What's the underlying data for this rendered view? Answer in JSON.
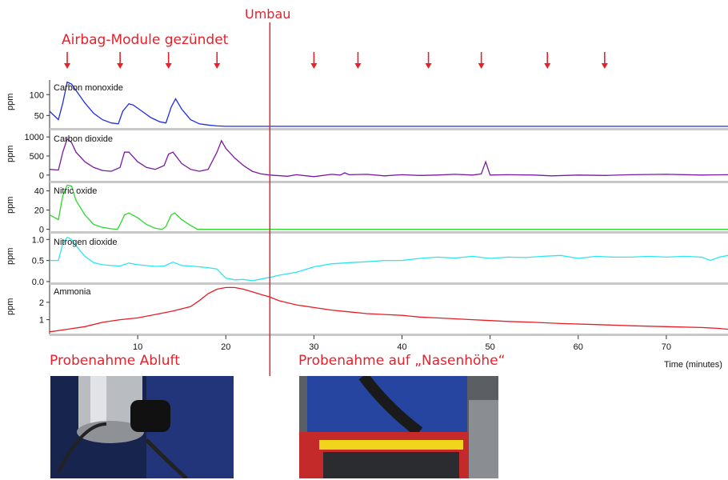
{
  "annotations": {
    "umbau": "Umbau",
    "airbag": "Airbag-Module gezündet",
    "abluft": "Probenahme Abluft",
    "nasenhoehe": "Probenahme auf „Nasenhöhe“",
    "umbau_time": 25
  },
  "colors": {
    "annotation": "#e8202a",
    "co": "#1f2ee0",
    "co2": "#7a1aa0",
    "no": "#2bd92b",
    "no2": "#2be6ee",
    "nh3": "#e81c24"
  },
  "chart_data": {
    "type": "line",
    "xlabel": "Time (minutes)",
    "ylabel": "ppm",
    "xlim": [
      0,
      77
    ],
    "x_ticks": [
      10,
      20,
      30,
      40,
      50,
      60,
      70
    ],
    "arrow_times": [
      2,
      8,
      13.5,
      19,
      30,
      35,
      43,
      49,
      56.5,
      63
    ],
    "panels": [
      {
        "name": "Carbon monoxide",
        "ylim": [
          20,
          135
        ],
        "yticks": [
          50,
          100
        ],
        "color_key": "co",
        "points": [
          [
            0,
            60
          ],
          [
            1,
            40
          ],
          [
            1.5,
            80
          ],
          [
            2,
            130
          ],
          [
            2.5,
            125
          ],
          [
            3,
            110
          ],
          [
            4,
            80
          ],
          [
            5,
            55
          ],
          [
            6,
            40
          ],
          [
            7,
            32
          ],
          [
            7.8,
            30
          ],
          [
            8.3,
            60
          ],
          [
            9,
            78
          ],
          [
            9.5,
            75
          ],
          [
            10.5,
            60
          ],
          [
            11.5,
            45
          ],
          [
            12.5,
            35
          ],
          [
            13.2,
            32
          ],
          [
            13.8,
            70
          ],
          [
            14.3,
            90
          ],
          [
            15,
            65
          ],
          [
            16,
            40
          ],
          [
            17,
            30
          ],
          [
            18,
            27
          ],
          [
            19,
            25
          ],
          [
            20,
            24
          ],
          [
            77,
            24
          ]
        ]
      },
      {
        "name": "Carbon dioxide",
        "ylim": [
          -150,
          1150
        ],
        "yticks": [
          0,
          500,
          1000
        ],
        "color_key": "co2",
        "points": [
          [
            0,
            150
          ],
          [
            1,
            130
          ],
          [
            1.5,
            600
          ],
          [
            2,
            950
          ],
          [
            2.5,
            850
          ],
          [
            3,
            600
          ],
          [
            4,
            350
          ],
          [
            5,
            200
          ],
          [
            6,
            120
          ],
          [
            7,
            100
          ],
          [
            8,
            200
          ],
          [
            8.5,
            600
          ],
          [
            9,
            600
          ],
          [
            10,
            350
          ],
          [
            11,
            200
          ],
          [
            12,
            150
          ],
          [
            13,
            250
          ],
          [
            13.5,
            550
          ],
          [
            14,
            600
          ],
          [
            15,
            300
          ],
          [
            16,
            150
          ],
          [
            17,
            100
          ],
          [
            18,
            150
          ],
          [
            19,
            600
          ],
          [
            19.5,
            900
          ],
          [
            20,
            700
          ],
          [
            21,
            450
          ],
          [
            22,
            250
          ],
          [
            23,
            100
          ],
          [
            24,
            30
          ],
          [
            25,
            0
          ],
          [
            27,
            -30
          ],
          [
            28,
            10
          ],
          [
            30,
            -40
          ],
          [
            32,
            20
          ],
          [
            33,
            0
          ],
          [
            33.5,
            60
          ],
          [
            34,
            10
          ],
          [
            36,
            20
          ],
          [
            38,
            -20
          ],
          [
            40,
            10
          ],
          [
            42,
            -10
          ],
          [
            44,
            0
          ],
          [
            46,
            20
          ],
          [
            48,
            0
          ],
          [
            49,
            30
          ],
          [
            49.5,
            350
          ],
          [
            50,
            0
          ],
          [
            52,
            10
          ],
          [
            55,
            0
          ],
          [
            57,
            -20
          ],
          [
            60,
            0
          ],
          [
            63,
            -10
          ],
          [
            66,
            10
          ],
          [
            70,
            20
          ],
          [
            74,
            0
          ],
          [
            77,
            10
          ]
        ]
      },
      {
        "name": "Nitric oxide",
        "ylim": [
          -2,
          48
        ],
        "yticks": [
          0,
          20,
          40
        ],
        "color_key": "no",
        "points": [
          [
            0,
            15
          ],
          [
            1,
            10
          ],
          [
            1.5,
            35
          ],
          [
            2,
            46
          ],
          [
            2.5,
            45
          ],
          [
            3,
            30
          ],
          [
            4,
            15
          ],
          [
            5,
            5
          ],
          [
            6,
            2
          ],
          [
            7,
            0.5
          ],
          [
            7.7,
            0
          ],
          [
            8,
            5
          ],
          [
            8.5,
            15
          ],
          [
            9,
            17
          ],
          [
            10,
            12
          ],
          [
            11,
            5
          ],
          [
            12,
            1
          ],
          [
            12.8,
            0
          ],
          [
            13.2,
            3
          ],
          [
            13.8,
            15
          ],
          [
            14.2,
            17
          ],
          [
            15,
            10
          ],
          [
            16,
            4
          ],
          [
            16.8,
            0
          ],
          [
            77,
            0
          ]
        ]
      },
      {
        "name": "Nitrogen dioxide",
        "ylim": [
          -0.02,
          1.12
        ],
        "yticks": [
          0.0,
          0.5,
          1.0
        ],
        "color_key": "no2",
        "points": [
          [
            0,
            0.5
          ],
          [
            1,
            0.5
          ],
          [
            1.5,
            0.9
          ],
          [
            2,
            1.05
          ],
          [
            2.5,
            1.0
          ],
          [
            3,
            0.85
          ],
          [
            4,
            0.6
          ],
          [
            5,
            0.45
          ],
          [
            6,
            0.4
          ],
          [
            7,
            0.38
          ],
          [
            8,
            0.37
          ],
          [
            9,
            0.44
          ],
          [
            10,
            0.4
          ],
          [
            11,
            0.38
          ],
          [
            12,
            0.36
          ],
          [
            13,
            0.37
          ],
          [
            14,
            0.46
          ],
          [
            15,
            0.38
          ],
          [
            16,
            0.37
          ],
          [
            17,
            0.35
          ],
          [
            18,
            0.33
          ],
          [
            19,
            0.3
          ],
          [
            20,
            0.08
          ],
          [
            21,
            0.04
          ],
          [
            22,
            0.05
          ],
          [
            23,
            0.02
          ],
          [
            24,
            0.06
          ],
          [
            25,
            0.1
          ],
          [
            26,
            0.15
          ],
          [
            28,
            0.22
          ],
          [
            30,
            0.35
          ],
          [
            32,
            0.42
          ],
          [
            34,
            0.45
          ],
          [
            36,
            0.47
          ],
          [
            38,
            0.5
          ],
          [
            40,
            0.5
          ],
          [
            42,
            0.55
          ],
          [
            44,
            0.58
          ],
          [
            46,
            0.56
          ],
          [
            48,
            0.6
          ],
          [
            50,
            0.55
          ],
          [
            52,
            0.58
          ],
          [
            54,
            0.57
          ],
          [
            56,
            0.6
          ],
          [
            58,
            0.62
          ],
          [
            60,
            0.55
          ],
          [
            62,
            0.6
          ],
          [
            64,
            0.58
          ],
          [
            66,
            0.58
          ],
          [
            68,
            0.6
          ],
          [
            70,
            0.58
          ],
          [
            72,
            0.6
          ],
          [
            74,
            0.58
          ],
          [
            75,
            0.5
          ],
          [
            76,
            0.58
          ],
          [
            77,
            0.62
          ]
        ]
      },
      {
        "name": "Ammonia",
        "ylim": [
          0.2,
          3.05
        ],
        "yticks": [
          1,
          2
        ],
        "color_key": "nh3",
        "points": [
          [
            0,
            0.3
          ],
          [
            2,
            0.45
          ],
          [
            4,
            0.6
          ],
          [
            6,
            0.85
          ],
          [
            8,
            1.0
          ],
          [
            10,
            1.1
          ],
          [
            12,
            1.3
          ],
          [
            14,
            1.5
          ],
          [
            16,
            1.75
          ],
          [
            17,
            2.1
          ],
          [
            18,
            2.5
          ],
          [
            19,
            2.75
          ],
          [
            20,
            2.85
          ],
          [
            21,
            2.85
          ],
          [
            22,
            2.75
          ],
          [
            23,
            2.6
          ],
          [
            24,
            2.45
          ],
          [
            25,
            2.3
          ],
          [
            26,
            2.1
          ],
          [
            28,
            1.85
          ],
          [
            30,
            1.7
          ],
          [
            32,
            1.55
          ],
          [
            34,
            1.45
          ],
          [
            36,
            1.35
          ],
          [
            38,
            1.3
          ],
          [
            40,
            1.25
          ],
          [
            42,
            1.15
          ],
          [
            44,
            1.1
          ],
          [
            46,
            1.05
          ],
          [
            48,
            1.0
          ],
          [
            50,
            0.95
          ],
          [
            52,
            0.9
          ],
          [
            55,
            0.85
          ],
          [
            58,
            0.78
          ],
          [
            62,
            0.72
          ],
          [
            66,
            0.65
          ],
          [
            70,
            0.6
          ],
          [
            74,
            0.55
          ],
          [
            76,
            0.5
          ],
          [
            77,
            0.45
          ]
        ]
      }
    ]
  }
}
